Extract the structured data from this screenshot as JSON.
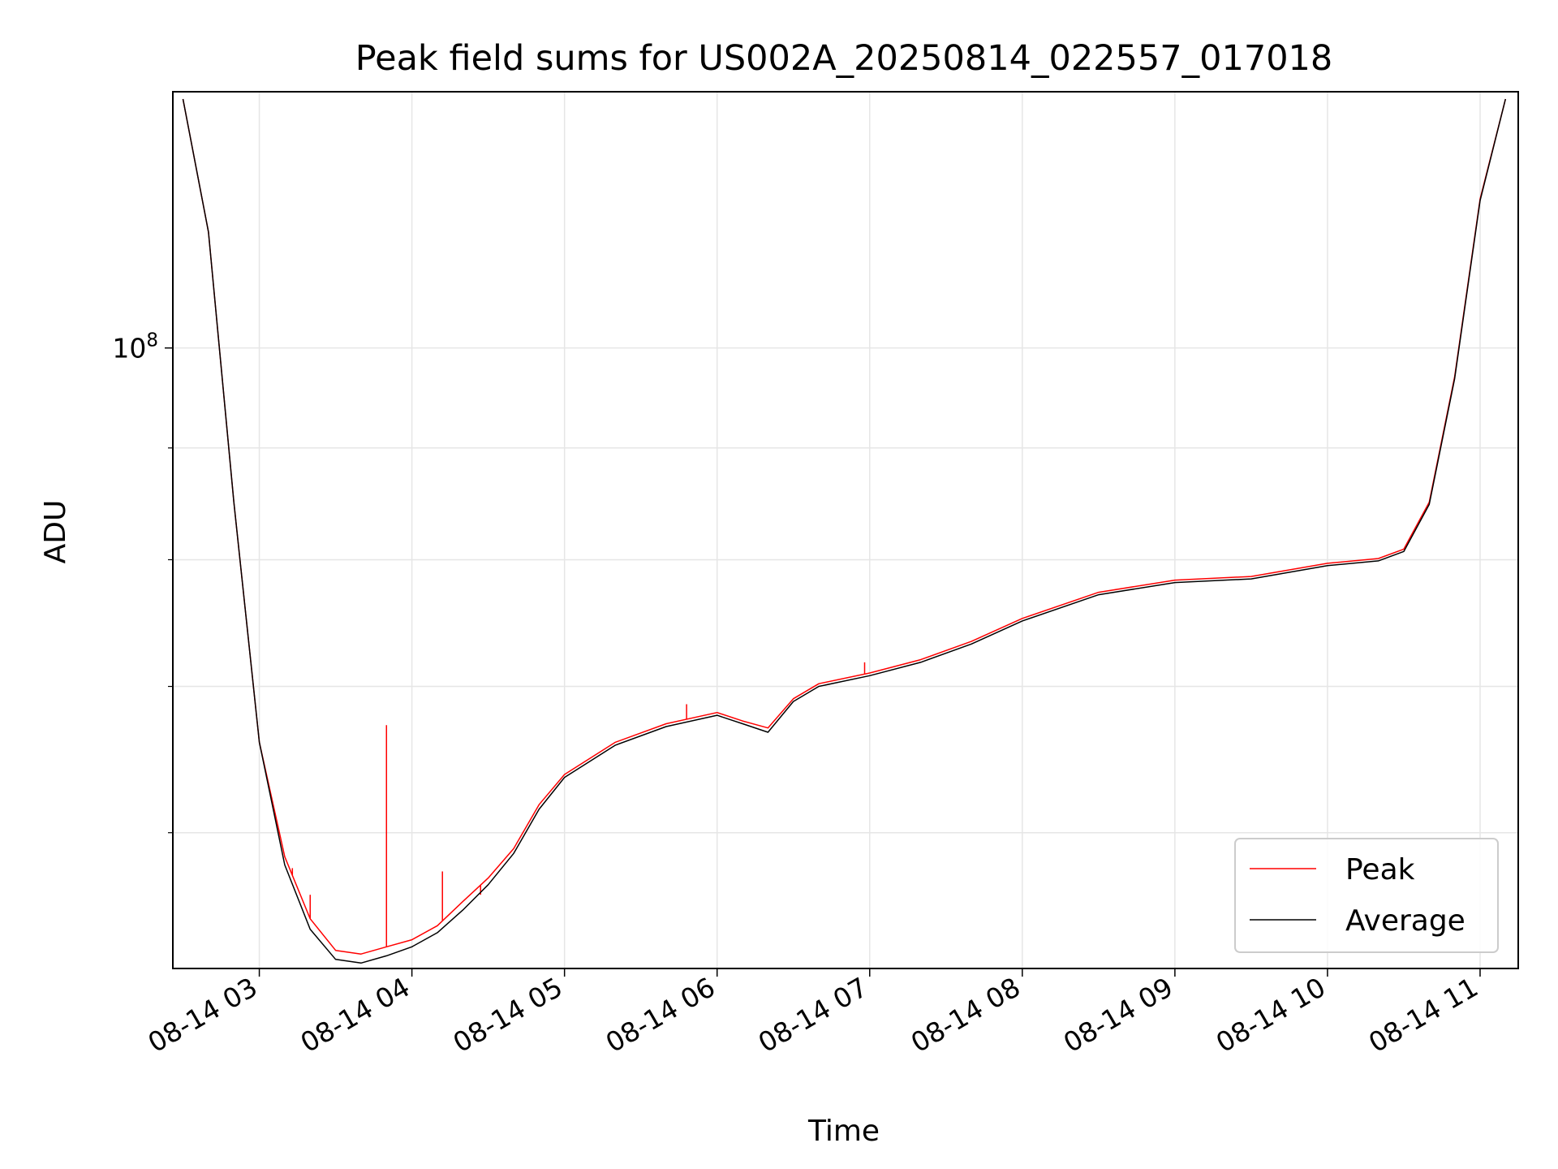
{
  "chart_data": {
    "type": "line",
    "title": "Peak field sums for US002A_20250814_022557_017018",
    "xlabel": "Time",
    "ylabel": "ADU",
    "x_range": [
      "08-14 02:26",
      "08-14 11:15"
    ],
    "y_scale": "log",
    "y_range": [
      52000000,
      131000000
    ],
    "grid": true,
    "legend_position": "lower-right",
    "x_ticks": [
      "08-14 03",
      "08-14 04",
      "08-14 05",
      "08-14 06",
      "08-14 07",
      "08-14 08",
      "08-14 09",
      "08-14 10",
      "08-14 11"
    ],
    "y_ticks": [
      {
        "value": 100000000,
        "label": "10^8"
      }
    ],
    "y_minor_ticks": [
      60000000,
      70000000,
      80000000,
      90000000,
      200000000
    ],
    "series": [
      {
        "name": "Peak",
        "color": "#ff0000",
        "x": [
          "08-14 02:30",
          "08-14 02:40",
          "08-14 02:50",
          "08-14 03:00",
          "08-14 03:10",
          "08-14 03:20",
          "08-14 03:30",
          "08-14 03:40",
          "08-14 03:50",
          "08-14 04:00",
          "08-14 04:10",
          "08-14 04:20",
          "08-14 04:30",
          "08-14 04:40",
          "08-14 04:50",
          "08-14 05:00",
          "08-14 05:20",
          "08-14 05:40",
          "08-14 06:00",
          "08-14 06:10",
          "08-14 06:20",
          "08-14 06:30",
          "08-14 06:40",
          "08-14 07:00",
          "08-14 07:20",
          "08-14 07:40",
          "08-14 08:00",
          "08-14 08:30",
          "08-14 09:00",
          "08-14 09:30",
          "08-14 10:00",
          "08-14 10:20",
          "08-14 10:30",
          "08-14 10:40",
          "08-14 10:50",
          "08-14 11:00",
          "08-14 11:10"
        ],
        "y": [
          130000000,
          113000000,
          85000000,
          66000000,
          58500000,
          54800000,
          53000000,
          52800000,
          53200000,
          53600000,
          54400000,
          55800000,
          57200000,
          59000000,
          61800000,
          63800000,
          66000000,
          67300000,
          68100000,
          67500000,
          67000000,
          69100000,
          70200000,
          71000000,
          72000000,
          73400000,
          75200000,
          77300000,
          78300000,
          78600000,
          79700000,
          80100000,
          80900000,
          85000000,
          97000000,
          117000000,
          130000000
        ],
        "spikes": [
          {
            "x": "08-14 03:13",
            "y": 57800000
          },
          {
            "x": "08-14 03:20",
            "y": 56200000
          },
          {
            "x": "08-14 03:50",
            "y": 67200000
          },
          {
            "x": "08-14 04:12",
            "y": 57600000
          },
          {
            "x": "08-14 04:27",
            "y": 56200000
          },
          {
            "x": "08-14 05:48",
            "y": 68700000
          },
          {
            "x": "08-14 06:58",
            "y": 71800000
          }
        ]
      },
      {
        "name": "Average",
        "color": "#000000",
        "x": [
          "08-14 02:30",
          "08-14 02:40",
          "08-14 02:50",
          "08-14 03:00",
          "08-14 03:10",
          "08-14 03:20",
          "08-14 03:30",
          "08-14 03:40",
          "08-14 03:50",
          "08-14 04:00",
          "08-14 04:10",
          "08-14 04:20",
          "08-14 04:30",
          "08-14 04:40",
          "08-14 04:50",
          "08-14 05:00",
          "08-14 05:20",
          "08-14 05:40",
          "08-14 06:00",
          "08-14 06:10",
          "08-14 06:20",
          "08-14 06:30",
          "08-14 06:40",
          "08-14 07:00",
          "08-14 07:20",
          "08-14 07:40",
          "08-14 08:00",
          "08-14 08:30",
          "08-14 09:00",
          "08-14 09:30",
          "08-14 10:00",
          "08-14 10:20",
          "08-14 10:30",
          "08-14 10:40",
          "08-14 10:50",
          "08-14 11:00",
          "08-14 11:10"
        ],
        "y": [
          130000000,
          113000000,
          85000000,
          66000000,
          58000000,
          54200000,
          52500000,
          52300000,
          52700000,
          53200000,
          54000000,
          55300000,
          56800000,
          58700000,
          61500000,
          63600000,
          65800000,
          67100000,
          67900000,
          67300000,
          66700000,
          68900000,
          70000000,
          70800000,
          71800000,
          73200000,
          75000000,
          77100000,
          78100000,
          78400000,
          79500000,
          79900000,
          80700000,
          84800000,
          96800000,
          116800000,
          130000000
        ]
      }
    ]
  }
}
